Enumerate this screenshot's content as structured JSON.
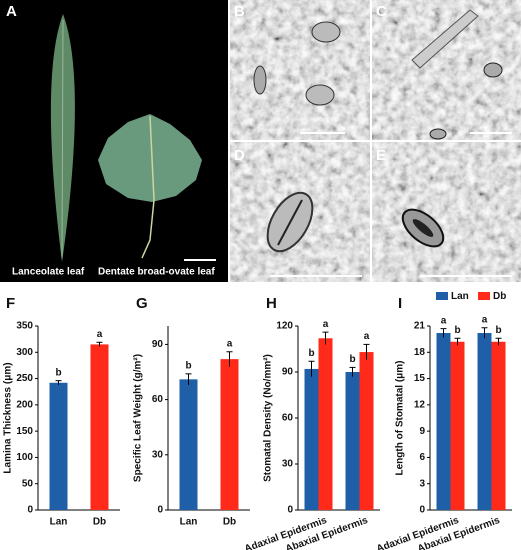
{
  "images": [
    {
      "label": "A",
      "captions": [
        "Lanceolate leaf",
        "Dentate broad-ovate leaf"
      ]
    },
    {
      "label": "B"
    },
    {
      "label": "C"
    },
    {
      "label": "D"
    },
    {
      "label": "E"
    }
  ],
  "legend": [
    {
      "name": "Lan",
      "color": "#1f5fa8"
    },
    {
      "name": "Db",
      "color": "#ff2a1a"
    }
  ],
  "chart_data": [
    {
      "type": "bar",
      "panel": "F",
      "ylabel": "Lamina Thickness (μm)",
      "categories": [
        "Lan",
        "Db"
      ],
      "values": [
        242,
        315
      ],
      "errors": [
        4,
        4
      ],
      "letters": [
        "b",
        "a"
      ],
      "colors": [
        "#1f5fa8",
        "#ff2a1a"
      ],
      "ylim": [
        0,
        350
      ],
      "yticks": [
        0,
        50,
        100,
        150,
        200,
        250,
        300,
        350
      ]
    },
    {
      "type": "bar",
      "panel": "G",
      "ylabel": "Specific Leaf Weight (g/m²)",
      "categories": [
        "Lan",
        "Db"
      ],
      "values": [
        71,
        82
      ],
      "errors": [
        3,
        4
      ],
      "letters": [
        "b",
        "a"
      ],
      "colors": [
        "#1f5fa8",
        "#ff2a1a"
      ],
      "ylim": [
        0,
        100
      ],
      "yticks": [
        0,
        30,
        60,
        90
      ]
    },
    {
      "type": "grouped-bar",
      "panel": "H",
      "ylabel": "Stomatal Density (No/mm²)",
      "categories": [
        "Adaxial Epidermis",
        "Abaxial Epidermis"
      ],
      "series": [
        {
          "color": "#1f5fa8",
          "values": [
            92,
            90
          ],
          "errors": [
            5,
            3
          ],
          "letters": [
            "b",
            "b"
          ]
        },
        {
          "color": "#ff2a1a",
          "values": [
            112,
            103
          ],
          "errors": [
            4,
            5
          ],
          "letters": [
            "a",
            "a"
          ]
        }
      ],
      "ylim": [
        0,
        120
      ],
      "yticks": [
        0,
        30,
        60,
        90,
        120
      ]
    },
    {
      "type": "grouped-bar",
      "panel": "I",
      "ylabel": "Length of Stomatal (μm)",
      "categories": [
        "Adaxial Epidermis",
        "Abaxial Epidermis"
      ],
      "series": [
        {
          "color": "#1f5fa8",
          "values": [
            20.2,
            20.2
          ],
          "errors": [
            0.5,
            0.6
          ],
          "letters": [
            "a",
            "a"
          ]
        },
        {
          "color": "#ff2a1a",
          "values": [
            19.2,
            19.2
          ],
          "errors": [
            0.4,
            0.4
          ],
          "letters": [
            "b",
            "b"
          ]
        }
      ],
      "ylim": [
        0,
        21
      ],
      "yticks": [
        0,
        3,
        6,
        9,
        12,
        15,
        18,
        21
      ]
    }
  ]
}
